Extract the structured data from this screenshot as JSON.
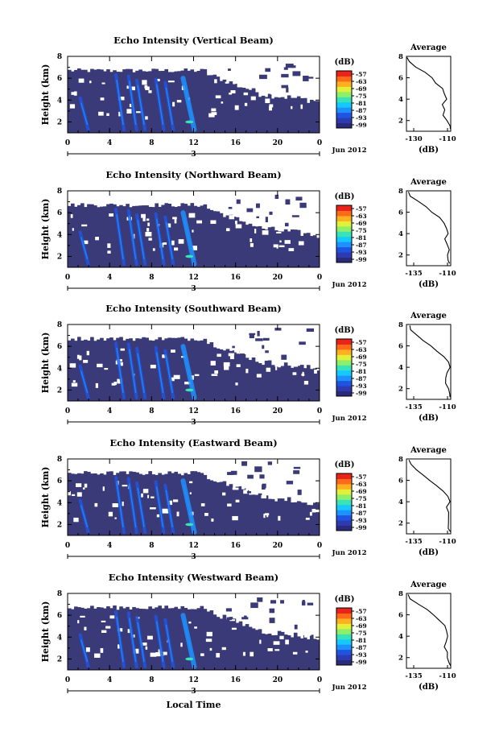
{
  "figure": {
    "xlabel": "Local Time",
    "date_label": "Jun 2012",
    "xtick_labels": [
      "0",
      "4",
      "8",
      "12",
      "16",
      "20",
      "0"
    ],
    "day_marker": "3",
    "ylabel": "Height (km)",
    "ytick_labels": [
      "2",
      "4",
      "6",
      "8"
    ],
    "colorbar_unit": "(dB)",
    "colorbar_ticks": [
      "-57",
      "-63",
      "-69",
      "-75",
      "-81",
      "-87",
      "-93",
      "-99"
    ],
    "colorbar_colors": [
      "#2a2a7a",
      "#2e3ab0",
      "#1f54e0",
      "#1e90ff",
      "#15c9ff",
      "#38e3b8",
      "#8ef06a",
      "#e2f03a",
      "#ffb020",
      "#ff6a1a",
      "#e8231a"
    ],
    "avg_title": "Average",
    "avg_xunit": "(dB)"
  },
  "panels": [
    {
      "title": "Echo Intensity (Vertical Beam)",
      "avg_xticks": [
        "-130",
        "-110"
      ]
    },
    {
      "title": "Echo Intensity (Northward Beam)",
      "avg_xticks": [
        "-135",
        "-110"
      ]
    },
    {
      "title": "Echo Intensity (Southward Beam)",
      "avg_xticks": [
        "-135",
        "-110"
      ]
    },
    {
      "title": "Echo Intensity (Eastward Beam)",
      "avg_xticks": [
        "-135",
        "-110"
      ]
    },
    {
      "title": "Echo Intensity (Westward Beam)",
      "avg_xticks": [
        "-135",
        "-110"
      ]
    }
  ],
  "chart_data": [
    {
      "type": "heatmap",
      "title": "Echo Intensity (Vertical Beam)",
      "xlabel": "",
      "ylabel": "Height (km)",
      "xlim": [
        0,
        24
      ],
      "ylim": [
        1,
        8
      ],
      "colorbar": {
        "label": "(dB)",
        "range": [
          -99,
          -57
        ]
      },
      "profile": {
        "title": "Average",
        "xlabel": "(dB)",
        "xlim": [
          -130,
          -110
        ],
        "height": [
          1.2,
          1.5,
          2,
          2.5,
          3,
          3.5,
          4,
          4.5,
          5,
          5.5,
          6,
          6.5,
          7,
          7.5,
          7.9
        ],
        "value": [
          -110,
          -111,
          -112,
          -113,
          -112,
          -113,
          -112,
          -113,
          -114,
          -116,
          -118,
          -121,
          -125,
          -128,
          -129
        ]
      }
    },
    {
      "type": "heatmap",
      "title": "Echo Intensity (Northward Beam)",
      "xlabel": "",
      "ylabel": "Height (km)",
      "xlim": [
        0,
        24
      ],
      "ylim": [
        1,
        8
      ],
      "colorbar": {
        "label": "(dB)",
        "range": [
          -99,
          -57
        ]
      },
      "profile": {
        "title": "Average",
        "xlabel": "(dB)",
        "xlim": [
          -135,
          -110
        ],
        "height": [
          1.2,
          1.5,
          2,
          2.5,
          3,
          3.5,
          4,
          4.5,
          5,
          5.5,
          6,
          6.5,
          7,
          7.5,
          7.9
        ],
        "value": [
          -110,
          -111,
          -112,
          -111,
          -112,
          -113,
          -111,
          -112,
          -114,
          -117,
          -120,
          -124,
          -129,
          -133,
          -134
        ]
      }
    },
    {
      "type": "heatmap",
      "title": "Echo Intensity (Southward Beam)",
      "xlabel": "",
      "ylabel": "Height (km)",
      "xlim": [
        0,
        24
      ],
      "ylim": [
        1,
        8
      ],
      "colorbar": {
        "label": "(dB)",
        "range": [
          -99,
          -57
        ]
      },
      "profile": {
        "title": "Average",
        "xlabel": "(dB)",
        "xlim": [
          -135,
          -110
        ],
        "height": [
          1.2,
          1.5,
          2,
          2.5,
          3,
          3.5,
          4,
          4.5,
          5,
          5.5,
          6,
          6.5,
          7,
          7.5,
          7.9
        ],
        "value": [
          -110,
          -111,
          -112,
          -112,
          -113,
          -112,
          -111,
          -112,
          -114,
          -117,
          -121,
          -125,
          -129,
          -133,
          -134
        ]
      }
    },
    {
      "type": "heatmap",
      "title": "Echo Intensity (Eastward Beam)",
      "xlabel": "",
      "ylabel": "Height (km)",
      "xlim": [
        0,
        24
      ],
      "ylim": [
        1,
        8
      ],
      "colorbar": {
        "label": "(dB)",
        "range": [
          -99,
          -57
        ]
      },
      "profile": {
        "title": "Average",
        "xlabel": "(dB)",
        "xlim": [
          -135,
          -110
        ],
        "height": [
          1.2,
          1.5,
          2,
          2.5,
          3,
          3.5,
          4,
          4.5,
          5,
          5.5,
          6,
          6.5,
          7,
          7.5,
          7.9
        ],
        "value": [
          -110,
          -111,
          -112,
          -111,
          -112,
          -113,
          -111,
          -112,
          -114,
          -117,
          -121,
          -125,
          -129,
          -132,
          -134
        ]
      }
    },
    {
      "type": "heatmap",
      "title": "Echo Intensity (Westward Beam)",
      "xlabel": "Local Time",
      "ylabel": "Height (km)",
      "xlim": [
        0,
        24
      ],
      "ylim": [
        1,
        8
      ],
      "colorbar": {
        "label": "(dB)",
        "range": [
          -99,
          -57
        ]
      },
      "profile": {
        "title": "Average",
        "xlabel": "(dB)",
        "xlim": [
          -135,
          -110
        ],
        "height": [
          1.2,
          1.5,
          2,
          2.5,
          3,
          3.5,
          4,
          4.5,
          5,
          5.5,
          6,
          6.5,
          7,
          7.5,
          7.9
        ],
        "value": [
          -110,
          -111,
          -112,
          -112,
          -113,
          -112,
          -111,
          -112,
          -114,
          -117,
          -120,
          -124,
          -129,
          -133,
          -134
        ]
      }
    }
  ]
}
